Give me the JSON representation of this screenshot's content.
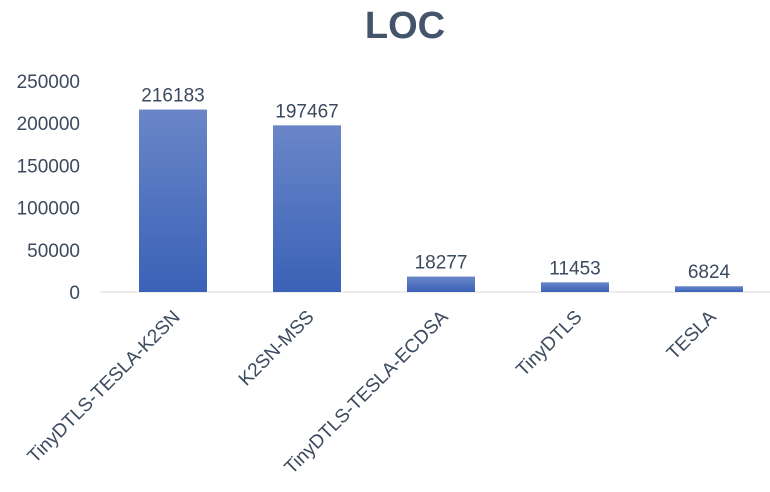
{
  "chart_data": {
    "type": "bar",
    "title": "LOC",
    "categories": [
      "TinyDTLS-TESLA-K2SN",
      "K2SN-MSS",
      "TinyDTLS-TESLA-ECDSA",
      "TinyDTLS",
      "TESLA"
    ],
    "values": [
      216183,
      197467,
      18277,
      11453,
      6824
    ],
    "ylim": [
      0,
      250000
    ],
    "yticks": [
      "0",
      "50000",
      "100000",
      "150000",
      "200000",
      "250000"
    ],
    "grid": false,
    "legend": "none",
    "colors": {
      "bar_top": "#6a86c8",
      "bar_bottom": "#3a62b7",
      "axis": "#d9d9d9"
    }
  }
}
